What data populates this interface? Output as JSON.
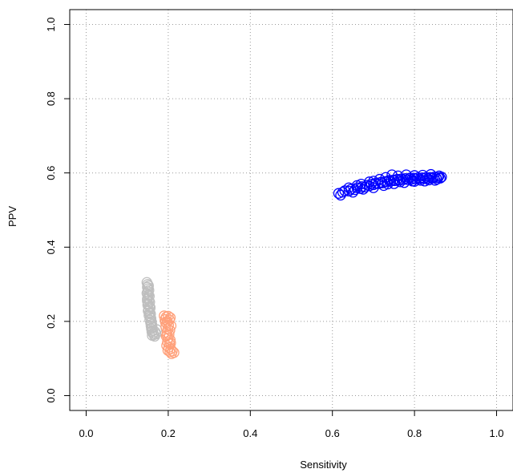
{
  "chart_data": {
    "type": "scatter",
    "title": "",
    "xlabel": "Sensitivity",
    "ylabel": "PPV",
    "xlim": [
      -0.04,
      1.04
    ],
    "ylim": [
      -0.04,
      1.04
    ],
    "x_ticks": [
      0.0,
      0.2,
      0.4,
      0.6,
      0.8,
      1.0
    ],
    "y_ticks": [
      0.0,
      0.2,
      0.4,
      0.6,
      0.8,
      1.0
    ],
    "x_tick_labels": [
      "0.0",
      "0.2",
      "0.4",
      "0.6",
      "0.8",
      "1.0"
    ],
    "y_tick_labels": [
      "0.0",
      "0.2",
      "0.4",
      "0.6",
      "0.8",
      "1.0"
    ],
    "grid": true,
    "marker": "open-circle",
    "series": [
      {
        "color": "#bebebe",
        "points": [
          [
            0.148,
            0.305
          ],
          [
            0.15,
            0.3
          ],
          [
            0.152,
            0.296
          ],
          [
            0.149,
            0.292
          ],
          [
            0.151,
            0.288
          ],
          [
            0.153,
            0.284
          ],
          [
            0.15,
            0.28
          ],
          [
            0.148,
            0.276
          ],
          [
            0.152,
            0.272
          ],
          [
            0.154,
            0.268
          ],
          [
            0.15,
            0.264
          ],
          [
            0.149,
            0.26
          ],
          [
            0.153,
            0.256
          ],
          [
            0.155,
            0.252
          ],
          [
            0.151,
            0.248
          ],
          [
            0.15,
            0.244
          ],
          [
            0.154,
            0.24
          ],
          [
            0.156,
            0.236
          ],
          [
            0.152,
            0.232
          ],
          [
            0.151,
            0.228
          ],
          [
            0.155,
            0.224
          ],
          [
            0.157,
            0.22
          ],
          [
            0.153,
            0.216
          ],
          [
            0.156,
            0.212
          ],
          [
            0.158,
            0.208
          ],
          [
            0.155,
            0.204
          ],
          [
            0.159,
            0.2
          ],
          [
            0.157,
            0.196
          ],
          [
            0.16,
            0.192
          ],
          [
            0.158,
            0.188
          ],
          [
            0.161,
            0.184
          ],
          [
            0.159,
            0.18
          ],
          [
            0.162,
            0.176
          ],
          [
            0.16,
            0.172
          ],
          [
            0.163,
            0.168
          ],
          [
            0.165,
            0.164
          ],
          [
            0.161,
            0.162
          ],
          [
            0.167,
            0.16
          ],
          [
            0.17,
            0.166
          ],
          [
            0.168,
            0.172
          ],
          [
            0.172,
            0.178
          ],
          [
            0.151,
            0.27
          ],
          [
            0.149,
            0.255
          ],
          [
            0.156,
            0.238
          ],
          [
            0.154,
            0.222
          ]
        ]
      },
      {
        "color": "#ffa07a",
        "points": [
          [
            0.19,
            0.215
          ],
          [
            0.195,
            0.212
          ],
          [
            0.2,
            0.214
          ],
          [
            0.205,
            0.21
          ],
          [
            0.192,
            0.205
          ],
          [
            0.198,
            0.2
          ],
          [
            0.203,
            0.204
          ],
          [
            0.196,
            0.195
          ],
          [
            0.201,
            0.19
          ],
          [
            0.194,
            0.185
          ],
          [
            0.199,
            0.18
          ],
          [
            0.204,
            0.176
          ],
          [
            0.197,
            0.17
          ],
          [
            0.202,
            0.165
          ],
          [
            0.195,
            0.16
          ],
          [
            0.2,
            0.155
          ],
          [
            0.205,
            0.15
          ],
          [
            0.198,
            0.145
          ],
          [
            0.203,
            0.14
          ],
          [
            0.196,
            0.135
          ],
          [
            0.201,
            0.13
          ],
          [
            0.206,
            0.126
          ],
          [
            0.199,
            0.122
          ],
          [
            0.204,
            0.118
          ],
          [
            0.21,
            0.12
          ],
          [
            0.214,
            0.116
          ],
          [
            0.208,
            0.113
          ],
          [
            0.193,
            0.198
          ],
          [
            0.207,
            0.188
          ],
          [
            0.197,
            0.163
          ],
          [
            0.206,
            0.142
          ]
        ]
      },
      {
        "color": "#0000ff",
        "points": [
          [
            0.615,
            0.545
          ],
          [
            0.625,
            0.548
          ],
          [
            0.63,
            0.552
          ],
          [
            0.64,
            0.551
          ],
          [
            0.645,
            0.556
          ],
          [
            0.655,
            0.555
          ],
          [
            0.66,
            0.56
          ],
          [
            0.668,
            0.558
          ],
          [
            0.672,
            0.563
          ],
          [
            0.68,
            0.562
          ],
          [
            0.685,
            0.567
          ],
          [
            0.69,
            0.565
          ],
          [
            0.695,
            0.57
          ],
          [
            0.7,
            0.568
          ],
          [
            0.705,
            0.572
          ],
          [
            0.712,
            0.571
          ],
          [
            0.718,
            0.575
          ],
          [
            0.722,
            0.573
          ],
          [
            0.728,
            0.577
          ],
          [
            0.733,
            0.576
          ],
          [
            0.738,
            0.58
          ],
          [
            0.742,
            0.578
          ],
          [
            0.748,
            0.581
          ],
          [
            0.752,
            0.579
          ],
          [
            0.758,
            0.583
          ],
          [
            0.763,
            0.58
          ],
          [
            0.768,
            0.584
          ],
          [
            0.773,
            0.582
          ],
          [
            0.778,
            0.585
          ],
          [
            0.783,
            0.582
          ],
          [
            0.788,
            0.586
          ],
          [
            0.793,
            0.583
          ],
          [
            0.798,
            0.586
          ],
          [
            0.803,
            0.584
          ],
          [
            0.808,
            0.587
          ],
          [
            0.813,
            0.584
          ],
          [
            0.818,
            0.587
          ],
          [
            0.823,
            0.585
          ],
          [
            0.828,
            0.588
          ],
          [
            0.833,
            0.585
          ],
          [
            0.838,
            0.588
          ],
          [
            0.843,
            0.586
          ],
          [
            0.848,
            0.589
          ],
          [
            0.853,
            0.587
          ],
          [
            0.858,
            0.588
          ],
          [
            0.863,
            0.586
          ],
          [
            0.866,
            0.589
          ],
          [
            0.62,
            0.54
          ],
          [
            0.65,
            0.548
          ],
          [
            0.675,
            0.556
          ],
          [
            0.7,
            0.56
          ],
          [
            0.725,
            0.566
          ],
          [
            0.75,
            0.571
          ],
          [
            0.775,
            0.574
          ],
          [
            0.8,
            0.577
          ],
          [
            0.825,
            0.578
          ],
          [
            0.85,
            0.58
          ],
          [
            0.64,
            0.56
          ],
          [
            0.67,
            0.57
          ],
          [
            0.7,
            0.578
          ],
          [
            0.73,
            0.588
          ],
          [
            0.745,
            0.595
          ],
          [
            0.76,
            0.592
          ],
          [
            0.78,
            0.595
          ],
          [
            0.8,
            0.593
          ],
          [
            0.82,
            0.594
          ],
          [
            0.84,
            0.596
          ],
          [
            0.86,
            0.592
          ],
          [
            0.715,
            0.583
          ],
          [
            0.69,
            0.576
          ],
          [
            0.66,
            0.566
          ],
          [
            0.735,
            0.57
          ],
          [
            0.765,
            0.576
          ],
          [
            0.795,
            0.578
          ],
          [
            0.815,
            0.58
          ],
          [
            0.835,
            0.581
          ],
          [
            0.855,
            0.583
          ]
        ]
      }
    ]
  }
}
